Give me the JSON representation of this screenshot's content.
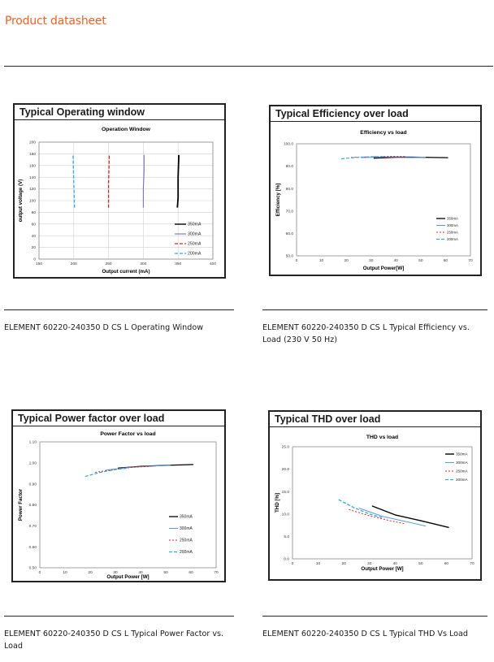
{
  "header": {
    "title": "Product datasheet"
  },
  "captions": [
    "ELEMENT 60220-240350 D CS L Operating Window",
    "ELEMENT 60220-240350 D CS L Typical Efficiency vs. Load (230 V  50 Hz)",
    "ELEMENT 60220-240350 D CS L Typical Power Factor vs. Load",
    "ELEMENT 60220-240350 D CS L Typical THD Vs Load"
  ],
  "chart_data": [
    {
      "card_title": "Typical Operating window",
      "type": "line",
      "title": "Operation Window",
      "xlabel": "Output current (mA)",
      "ylabel": "output voltage (V)",
      "xlim": [
        150,
        400
      ],
      "ylim": [
        0,
        200
      ],
      "xticks": [
        "150",
        "200",
        "250",
        "300",
        "350",
        "400"
      ],
      "yticks": [
        "0",
        "20",
        "40",
        "60",
        "80",
        "100",
        "120",
        "140",
        "160",
        "180",
        "200"
      ],
      "grid": true,
      "legend_position": "bottom-right",
      "series": [
        {
          "name": "350mA",
          "color": "#000000",
          "dash": "solid",
          "width": 1.8,
          "points": [
            [
              349,
              88
            ],
            [
              350,
              105
            ],
            [
              350,
              140
            ],
            [
              351,
              178
            ]
          ]
        },
        {
          "name": "300mA",
          "color": "#7f6fc0",
          "dash": "solid",
          "width": 1.1,
          "points": [
            [
              300,
              88
            ],
            [
              300,
              120
            ],
            [
              301,
              150
            ],
            [
              301,
              178
            ]
          ]
        },
        {
          "name": "250mA",
          "color": "#e02020",
          "dash": "4,2",
          "width": 1.3,
          "points": [
            [
              250,
              88
            ],
            [
              250,
              130
            ],
            [
              251,
              178
            ]
          ]
        },
        {
          "name": "200mA",
          "color": "#33a8e0",
          "dash": "4,2",
          "width": 1.3,
          "points": [
            [
              201,
              88
            ],
            [
              200,
              130
            ],
            [
              199,
              178
            ]
          ]
        }
      ]
    },
    {
      "card_title": "Typical Efficiency over load",
      "type": "line",
      "title": "Efficiency vs load",
      "xlabel": "Output Power[W]",
      "ylabel": "Efficiency [%]",
      "xlim": [
        0,
        70
      ],
      "ylim": [
        50,
        100
      ],
      "xticks": [
        "0",
        "10",
        "20",
        "30",
        "40",
        "50",
        "60",
        "70"
      ],
      "yticks": [
        "50.0",
        "60.0",
        "70.0",
        "80.0",
        "90.0",
        "100.0"
      ],
      "grid": false,
      "legend_position": "bottom-right",
      "series": [
        {
          "name": "350mA",
          "color": "#000000",
          "dash": "solid",
          "width": 1.3,
          "points": [
            [
              31,
              93.6
            ],
            [
              40,
              94
            ],
            [
              50,
              94
            ],
            [
              61,
              93.8
            ]
          ]
        },
        {
          "name": "300mA",
          "color": "#5b9bd5",
          "dash": "solid",
          "width": 1.0,
          "points": [
            [
              26,
              93.8
            ],
            [
              35,
              94.1
            ],
            [
              45,
              94.2
            ],
            [
              52,
              94
            ]
          ]
        },
        {
          "name": "250mA",
          "color": "#e02020",
          "dash": "2,2",
          "width": 1.0,
          "points": [
            [
              22,
              93.9
            ],
            [
              30,
              94.2
            ],
            [
              38,
              94.4
            ],
            [
              44,
              94.3
            ]
          ]
        },
        {
          "name": "200mA",
          "color": "#33a8e0",
          "dash": "4,2",
          "width": 1.2,
          "points": [
            [
              18,
              93.3
            ],
            [
              24,
              93.9
            ],
            [
              30,
              94.2
            ],
            [
              35,
              94.3
            ]
          ]
        }
      ]
    },
    {
      "card_title": "Typical Power factor over load",
      "type": "line",
      "title": "Power Factor vs load",
      "xlabel": "Output Power [W]",
      "ylabel": "Power Factor",
      "xlim": [
        0,
        70
      ],
      "ylim": [
        0.5,
        1.1
      ],
      "xticks": [
        "0",
        "10",
        "20",
        "30",
        "40",
        "50",
        "60",
        "70"
      ],
      "yticks": [
        "0.50",
        "0.60",
        "0.70",
        "0.80",
        "0.90",
        "1.00",
        "1.10"
      ],
      "grid": false,
      "legend_position": "bottom-right",
      "series": [
        {
          "name": "350mA",
          "color": "#000000",
          "dash": "solid",
          "width": 1.3,
          "points": [
            [
              31,
              0.975
            ],
            [
              40,
              0.983
            ],
            [
              50,
              0.988
            ],
            [
              61,
              0.992
            ]
          ]
        },
        {
          "name": "300mA",
          "color": "#5b9bd5",
          "dash": "solid",
          "width": 1.0,
          "points": [
            [
              26,
              0.965
            ],
            [
              35,
              0.978
            ],
            [
              45,
              0.985
            ],
            [
              52,
              0.988
            ]
          ]
        },
        {
          "name": "250mA",
          "color": "#e02020",
          "dash": "2,2",
          "width": 1.0,
          "points": [
            [
              22,
              0.955
            ],
            [
              30,
              0.97
            ],
            [
              38,
              0.98
            ],
            [
              44,
              0.983
            ]
          ]
        },
        {
          "name": "200mA",
          "color": "#33a8e0",
          "dash": "4,2",
          "width": 1.2,
          "points": [
            [
              18,
              0.935
            ],
            [
              24,
              0.955
            ],
            [
              30,
              0.968
            ],
            [
              35,
              0.975
            ]
          ]
        }
      ]
    },
    {
      "card_title": "Typical THD over load",
      "type": "line",
      "title": "THD  vs  load",
      "xlabel": "Output Power [W]",
      "ylabel": "THD [%]",
      "xlim": [
        0,
        70
      ],
      "ylim": [
        0,
        25
      ],
      "xticks": [
        "0",
        "10",
        "20",
        "30",
        "40",
        "50",
        "60",
        "70"
      ],
      "yticks": [
        "0.0",
        "5.0",
        "10.0",
        "15.0",
        "20.0",
        "25.0"
      ],
      "grid": false,
      "legend_position": "top-right",
      "series": [
        {
          "name": "350mA",
          "color": "#000000",
          "dash": "solid",
          "width": 1.4,
          "points": [
            [
              31,
              11.8
            ],
            [
              40,
              9.8
            ],
            [
              50,
              8.5
            ],
            [
              61,
              7.0
            ]
          ]
        },
        {
          "name": "300mA",
          "color": "#5b9bd5",
          "dash": "solid",
          "width": 1.0,
          "points": [
            [
              26,
              11.3
            ],
            [
              35,
              9.5
            ],
            [
              45,
              8.2
            ],
            [
              52,
              7.3
            ]
          ]
        },
        {
          "name": "250mA",
          "color": "#e02020",
          "dash": "2,2",
          "width": 1.0,
          "points": [
            [
              22,
              11.0
            ],
            [
              30,
              9.6
            ],
            [
              38,
              8.5
            ],
            [
              44,
              7.8
            ]
          ]
        },
        {
          "name": "200mA",
          "color": "#33a8e0",
          "dash": "4,2",
          "width": 1.3,
          "points": [
            [
              18,
              13.2
            ],
            [
              24,
              11.4
            ],
            [
              30,
              10.0
            ],
            [
              35,
              9.2
            ]
          ]
        }
      ]
    }
  ]
}
